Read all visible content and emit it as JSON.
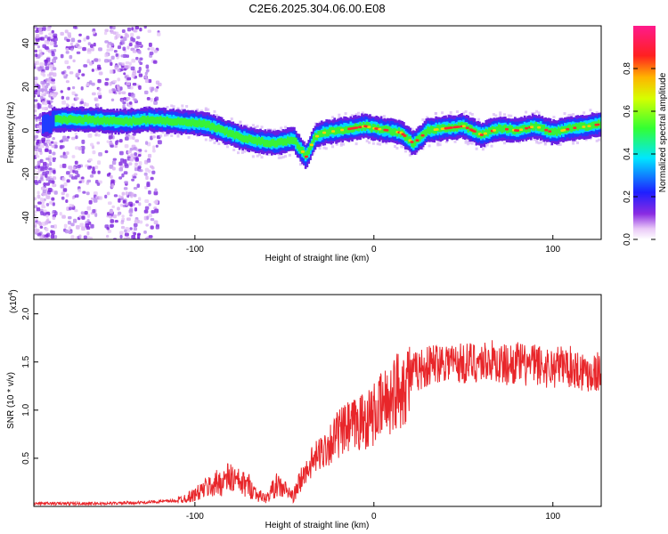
{
  "page": {
    "title": "C2E6.2025.304.06.00.E08"
  },
  "chart_data": [
    {
      "type": "heatmap",
      "title": "C2E6.2025.304.06.00.E08",
      "xlabel": "Height of straight line (km)",
      "ylabel": "Frequency (Hz)",
      "xlim": [
        -190,
        127
      ],
      "ylim": [
        -50,
        48
      ],
      "xticks": [
        -100,
        0,
        100
      ],
      "xtick_labels": [
        "-100",
        "0",
        "100"
      ],
      "yticks": [
        -40,
        -20,
        0,
        20,
        40
      ],
      "ytick_labels": [
        "-40",
        "-20",
        "0",
        "20",
        "40"
      ],
      "grid": false,
      "colorbar": {
        "label": "Normalized spectral amplitude",
        "range": [
          0,
          1
        ],
        "ticks": [
          0.0,
          0.2,
          0.4,
          0.6,
          0.8
        ],
        "tick_labels": [
          "0.0",
          "0.2",
          "0.4",
          "0.6",
          "0.8"
        ],
        "colormap": "rainbow (magenta-blue-cyan-green-yellow-red-magenta)"
      },
      "ridge_frequency": {
        "x": [
          -180,
          -160,
          -140,
          -125,
          -110,
          -95,
          -85,
          -75,
          -65,
          -55,
          -45,
          -38,
          -33,
          -28,
          -20,
          -12,
          -5,
          0,
          8,
          15,
          22,
          30,
          40,
          50,
          60,
          70,
          80,
          90,
          100,
          110,
          120,
          127
        ],
        "y": [
          5,
          5,
          4,
          5,
          4,
          3,
          0,
          -3,
          -5,
          -6,
          -4,
          -12,
          -3,
          -1,
          0,
          1,
          2,
          1,
          0,
          -1,
          -6,
          0,
          1,
          2,
          -2,
          1,
          0,
          2,
          -1,
          1,
          2,
          3
        ]
      }
    },
    {
      "type": "line",
      "title": "",
      "xlabel": "Height of straight line (km)",
      "ylabel": "SNR (10 * v/v)",
      "y_multiplier_label": "(x10",
      "y_multiplier_exp": "4",
      "y_multiplier_close": ")",
      "xlim": [
        -190,
        127
      ],
      "ylim": [
        0,
        2.2
      ],
      "xticks": [
        -100,
        0,
        100
      ],
      "xtick_labels": [
        "-100",
        "0",
        "100"
      ],
      "yticks": [
        0.5,
        1.0,
        1.5,
        2.0
      ],
      "ytick_labels": [
        "0.5",
        "1.0",
        "1.5",
        "2.0"
      ],
      "grid": false,
      "series": [
        {
          "color": "#e8262a",
          "x": [
            -190,
            -170,
            -150,
            -130,
            -120,
            -110,
            -100,
            -95,
            -90,
            -85,
            -80,
            -75,
            -70,
            -65,
            -60,
            -55,
            -50,
            -45,
            -40,
            -35,
            -30,
            -25,
            -20,
            -15,
            -10,
            -5,
            0,
            5,
            10,
            15,
            20,
            25,
            30,
            35,
            40,
            45,
            50,
            55,
            60,
            65,
            70,
            75,
            80,
            85,
            90,
            95,
            100,
            105,
            110,
            115,
            120,
            127
          ],
          "y": [
            0.03,
            0.03,
            0.03,
            0.04,
            0.05,
            0.06,
            0.12,
            0.18,
            0.22,
            0.26,
            0.3,
            0.24,
            0.22,
            0.12,
            0.08,
            0.22,
            0.18,
            0.1,
            0.3,
            0.45,
            0.55,
            0.65,
            0.75,
            0.8,
            0.85,
            0.9,
            0.95,
            1.05,
            1.15,
            1.25,
            1.35,
            1.42,
            1.45,
            1.5,
            1.52,
            1.5,
            1.48,
            1.5,
            1.5,
            1.52,
            1.48,
            1.47,
            1.5,
            1.46,
            1.48,
            1.45,
            1.44,
            1.47,
            1.45,
            1.42,
            1.4,
            1.4
          ]
        }
      ]
    }
  ]
}
